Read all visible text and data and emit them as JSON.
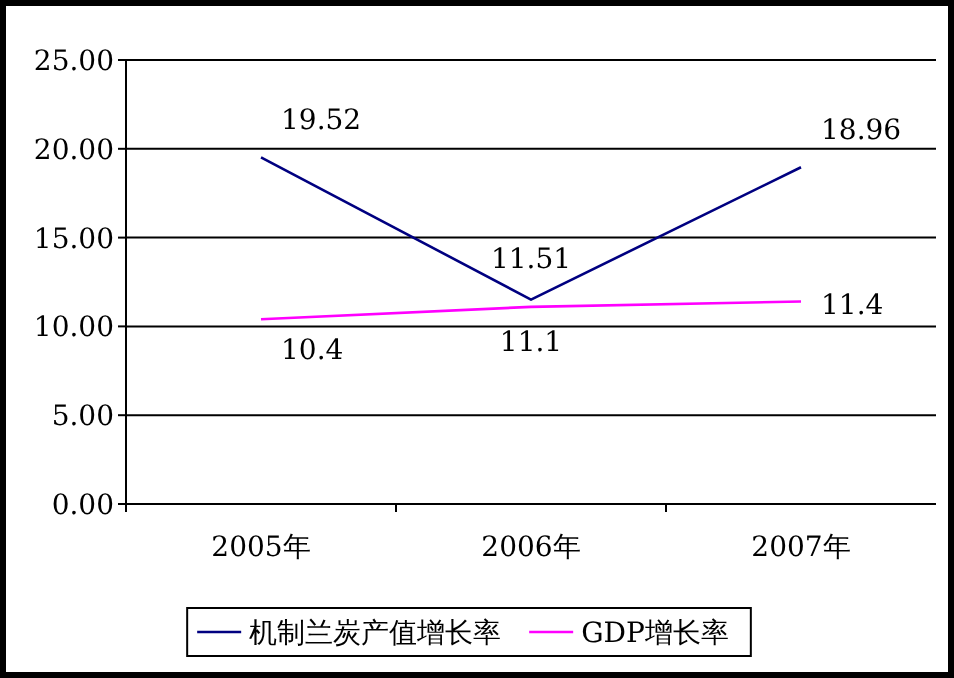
{
  "chart_data": {
    "type": "line",
    "categories": [
      "2005年",
      "2006年",
      "2007年"
    ],
    "series": [
      {
        "name": "机制兰炭产值增长率",
        "color": "#000080",
        "values": [
          19.52,
          11.51,
          18.96
        ]
      },
      {
        "name": "GDP增长率",
        "color": "#ff00ff",
        "values": [
          10.4,
          11.1,
          11.4
        ]
      }
    ],
    "ylim": [
      0,
      25
    ],
    "yticks": [
      {
        "value": 0,
        "label": "0.00"
      },
      {
        "value": 5,
        "label": "5.00"
      },
      {
        "value": 10,
        "label": "10.00"
      },
      {
        "value": 15,
        "label": "15.00"
      },
      {
        "value": 20,
        "label": "20.00"
      },
      {
        "value": 25,
        "label": "25.00"
      }
    ],
    "grid": "y",
    "legend": "bottom",
    "data_labels": true,
    "marker": "none",
    "line_style": "solid"
  }
}
